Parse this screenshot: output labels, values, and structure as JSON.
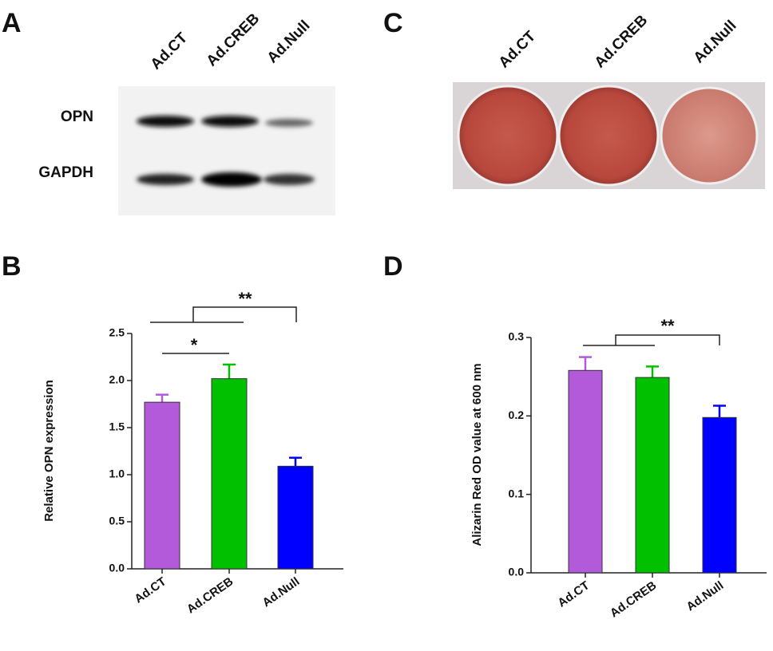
{
  "panels": {
    "A": {
      "letter": "A",
      "lanes": [
        "Ad.CT",
        "Ad.CREB",
        "Ad.Null"
      ],
      "rows": [
        "OPN",
        "GAPDH"
      ]
    },
    "B": {
      "letter": "B"
    },
    "C": {
      "letter": "C",
      "wells": [
        "Ad.CT",
        "Ad.CREB",
        "Ad.Null"
      ]
    },
    "D": {
      "letter": "D"
    }
  },
  "chart_data": [
    {
      "type": "bar",
      "y_label": "Relative OPN expression",
      "categories": [
        "Ad.CT",
        "Ad.CREB",
        "Ad.Null"
      ],
      "values": [
        1.77,
        2.02,
        1.09
      ],
      "errors": [
        0.08,
        0.15,
        0.09
      ],
      "colors": [
        "#b35adb",
        "#00c000",
        "#0000ff"
      ],
      "ylim": [
        0,
        2.5
      ],
      "yticks": [
        {
          "value": 0,
          "label": "0.0"
        },
        {
          "value": 0.5,
          "label": "0.5"
        },
        {
          "value": 1,
          "label": "1.0"
        },
        {
          "value": 1.5,
          "label": "1.5"
        },
        {
          "value": 2,
          "label": "2.0"
        },
        {
          "value": 2.5,
          "label": "2.5"
        }
      ],
      "annotations": [
        "*",
        "**"
      ]
    },
    {
      "type": "bar",
      "y_label": "Alizarin Red OD value at 600 nm",
      "categories": [
        "Ad.CT",
        "Ad.CREB",
        "Ad.Null"
      ],
      "values": [
        0.258,
        0.249,
        0.198
      ],
      "errors": [
        0.017,
        0.014,
        0.015
      ],
      "colors": [
        "#b35adb",
        "#00c000",
        "#0000ff"
      ],
      "ylim": [
        0,
        0.3
      ],
      "yticks": [
        {
          "value": 0,
          "label": "0.0"
        },
        {
          "value": 0.1,
          "label": "0.1"
        },
        {
          "value": 0.2,
          "label": "0.2"
        },
        {
          "value": 0.3,
          "label": "0.3"
        }
      ],
      "annotations": [
        "**"
      ]
    }
  ]
}
